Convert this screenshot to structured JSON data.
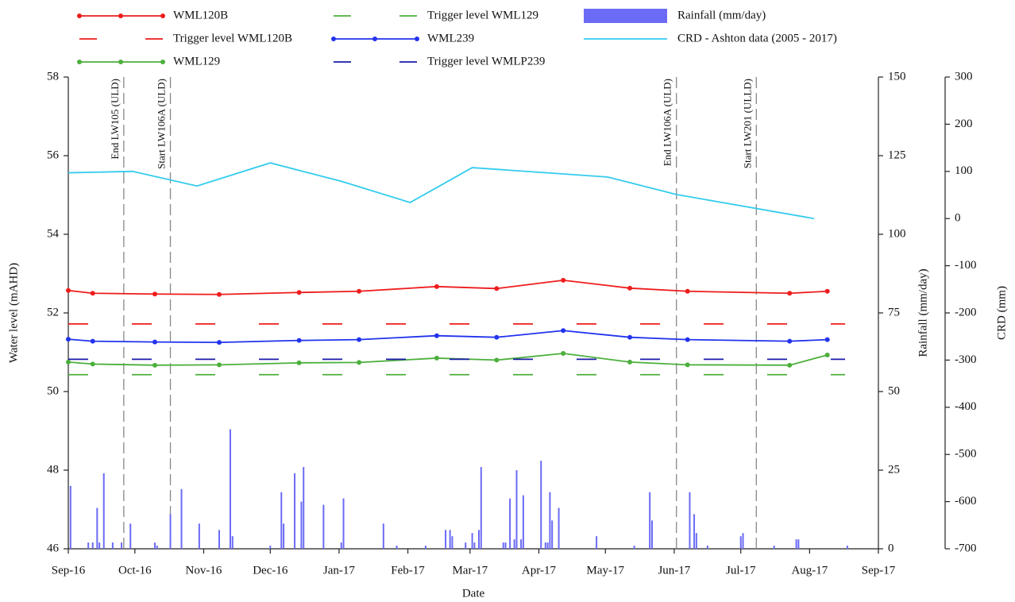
{
  "chart_data": {
    "type": "line",
    "xlabel": "Date",
    "ylabel": "Water level (mAHD)",
    "y2label": "Rainfall (mm/day)",
    "y3label": "CRD (mm)",
    "xlim": [
      0,
      365
    ],
    "xticks": [
      {
        "value": 0,
        "label": "Sep-16"
      },
      {
        "value": 30,
        "label": "Oct-16"
      },
      {
        "value": 61,
        "label": "Nov-16"
      },
      {
        "value": 91,
        "label": "Dec-16"
      },
      {
        "value": 122,
        "label": "Jan-17"
      },
      {
        "value": 153,
        "label": "Feb-17"
      },
      {
        "value": 181,
        "label": "Mar-17"
      },
      {
        "value": 212,
        "label": "Apr-17"
      },
      {
        "value": 242,
        "label": "May-17"
      },
      {
        "value": 273,
        "label": "Jun-17"
      },
      {
        "value": 303,
        "label": "Jul-17"
      },
      {
        "value": 334,
        "label": "Aug-17"
      },
      {
        "value": 365,
        "label": "Sep-17"
      }
    ],
    "ylim": [
      46,
      58
    ],
    "yticks": [
      46,
      48,
      50,
      52,
      54,
      56,
      58
    ],
    "y2lim": [
      0,
      150
    ],
    "y2ticks": [
      0,
      25,
      50,
      75,
      100,
      125,
      150
    ],
    "y3lim": [
      -700,
      300
    ],
    "y3ticks": [
      -700,
      -600,
      -500,
      -400,
      -300,
      -200,
      -100,
      0,
      100,
      200,
      300
    ],
    "series": [
      {
        "name": "WML120B",
        "type": "line",
        "color": "#ee1c1c",
        "marker": true,
        "x": [
          0,
          11,
          39,
          68,
          104,
          131,
          166,
          193,
          223,
          253,
          279,
          325,
          342
        ],
        "values": [
          52.57,
          52.5,
          52.48,
          52.47,
          52.52,
          52.55,
          52.67,
          52.62,
          52.83,
          52.63,
          52.55,
          52.5,
          52.55
        ]
      },
      {
        "name": "Trigger level WML120B",
        "type": "line",
        "color": "#ee1c1c",
        "dash": true,
        "x": [
          0,
          350
        ],
        "values": [
          51.72,
          51.72
        ]
      },
      {
        "name": "WML129",
        "type": "line",
        "color": "#4caf3c",
        "marker": true,
        "x": [
          0,
          11,
          39,
          68,
          104,
          131,
          166,
          193,
          223,
          253,
          279,
          325,
          342
        ],
        "values": [
          50.75,
          50.7,
          50.67,
          50.68,
          50.73,
          50.74,
          50.85,
          50.8,
          50.97,
          50.75,
          50.68,
          50.67,
          50.93
        ]
      },
      {
        "name": "Trigger level WML129",
        "type": "line",
        "color": "#4caf3c",
        "dash": true,
        "x": [
          0,
          350
        ],
        "values": [
          50.43,
          50.43
        ]
      },
      {
        "name": "WML239",
        "type": "line",
        "color": "#2233ee",
        "marker": true,
        "x": [
          0,
          11,
          39,
          68,
          104,
          131,
          166,
          193,
          223,
          253,
          279,
          325,
          342
        ],
        "values": [
          51.33,
          51.28,
          51.26,
          51.25,
          51.3,
          51.32,
          51.42,
          51.38,
          51.55,
          51.38,
          51.32,
          51.28,
          51.32
        ]
      },
      {
        "name": "Trigger level WMLP239",
        "type": "line",
        "color": "#1a1aaa",
        "dash": true,
        "x": [
          0,
          350
        ],
        "values": [
          50.82,
          50.82
        ]
      },
      {
        "name": "Rainfall (mm/day)",
        "type": "bar",
        "axis": "y2",
        "color": "#6b6bf5",
        "x": [
          1,
          9,
          11,
          13,
          14,
          16,
          20,
          24,
          28,
          39,
          40,
          46,
          51,
          59,
          68,
          73,
          74,
          91,
          96,
          97,
          102,
          105,
          106,
          115,
          123,
          124,
          142,
          148,
          161,
          170,
          172,
          173,
          179,
          182,
          183,
          185,
          186,
          196,
          197,
          199,
          201,
          202,
          204,
          205,
          213,
          215,
          216,
          217,
          218,
          221,
          238,
          255,
          262,
          263,
          280,
          282,
          283,
          288,
          303,
          304,
          318,
          328,
          329,
          351
        ],
        "values": [
          20,
          2,
          2,
          13,
          2,
          24,
          2,
          2,
          8,
          2,
          1,
          11,
          19,
          8,
          6,
          38,
          4,
          1,
          18,
          8,
          24,
          15,
          26,
          14,
          2,
          16,
          8,
          1,
          1,
          6,
          6,
          4,
          2,
          5,
          2,
          6,
          26,
          2,
          2,
          16,
          3,
          25,
          3,
          17,
          28,
          2,
          2,
          18,
          9,
          13,
          4,
          1,
          18,
          9,
          18,
          11,
          5,
          1,
          4,
          5,
          1,
          3,
          3,
          1
        ]
      },
      {
        "name": "CRD - Ashton data (2005 - 2017)",
        "type": "line",
        "axis": "y3",
        "color": "#33ccee",
        "x": [
          0,
          29,
          58,
          91,
          123,
          154,
          182,
          243,
          274,
          336
        ],
        "values": [
          97,
          100,
          69,
          118,
          79,
          34,
          108,
          88,
          51,
          0
        ]
      }
    ],
    "annotations": [
      {
        "text": "End LW105 (ULD)",
        "x": 25
      },
      {
        "text": "Start LW106A (ULD)",
        "x": 46
      },
      {
        "text": "End LW106A (ULD)",
        "x": 274
      },
      {
        "text": "Start LW201 (ULLD)",
        "x": 310
      }
    ]
  }
}
